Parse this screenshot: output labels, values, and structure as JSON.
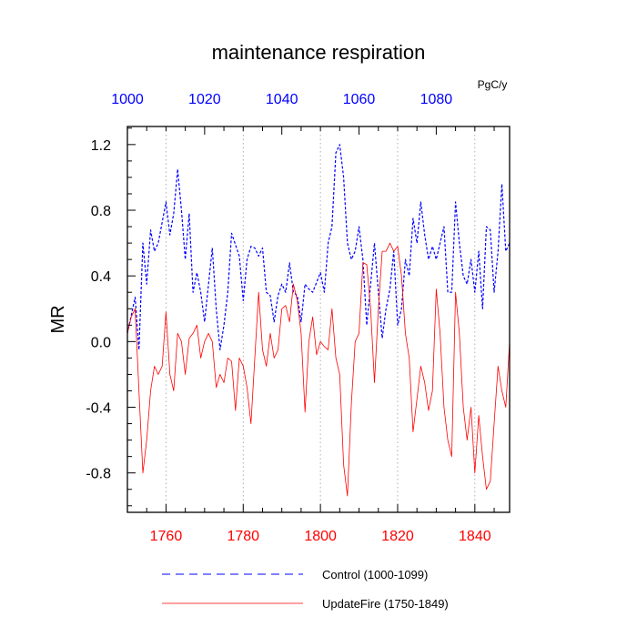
{
  "chart_data": {
    "type": "line",
    "title": "maintenance respiration",
    "ylabel": "MR",
    "units_label": "PgC/y",
    "ylim": [
      -1.04,
      1.31
    ],
    "yticks": [
      -0.8,
      -0.4,
      0.0,
      0.4,
      0.8,
      1.2
    ],
    "ytick_labels": [
      "-0.8",
      "-0.4",
      "0.0",
      "0.4",
      "0.8",
      "1.2"
    ],
    "grid": "vertical dotted lines at bottom-axis major ticks",
    "top_axis": {
      "range": [
        1000,
        1099
      ],
      "ticks": [
        1000,
        1020,
        1040,
        1060,
        1080
      ],
      "tick_labels": [
        "1000",
        "1020",
        "1040",
        "1060",
        "1080"
      ],
      "color": "#0000ff"
    },
    "bottom_axis": {
      "range": [
        1750,
        1849
      ],
      "ticks": [
        1760,
        1780,
        1800,
        1820,
        1840
      ],
      "tick_labels": [
        "1760",
        "1780",
        "1800",
        "1820",
        "1840"
      ],
      "color": "#ff0000"
    },
    "legend": {
      "placement": "bottom",
      "entries": [
        {
          "label": "Control (1000-1099)",
          "color": "#0000ff",
          "style": "dashed"
        },
        {
          "label": "UpdateFire (1750-1849)",
          "color": "#ff0000",
          "style": "solid"
        }
      ]
    },
    "series": [
      {
        "name": "Control (1000-1099)",
        "axis": "top",
        "color": "#0000ff",
        "x": [
          1000,
          1002,
          1003,
          1004,
          1005,
          1006,
          1007,
          1008,
          1010,
          1011,
          1012,
          1013,
          1014,
          1015,
          1016,
          1017,
          1018,
          1019,
          1020,
          1022,
          1023,
          1024,
          1025,
          1026,
          1027,
          1029,
          1030,
          1031,
          1032,
          1033,
          1034,
          1035,
          1036,
          1037,
          1038,
          1039,
          1040,
          1041,
          1042,
          1043,
          1044,
          1045,
          1046,
          1047,
          1048,
          1050,
          1051,
          1052,
          1053,
          1054,
          1055,
          1056,
          1057,
          1058,
          1059,
          1060,
          1061,
          1062,
          1063,
          1064,
          1065,
          1066,
          1067,
          1068,
          1069,
          1070,
          1071,
          1072,
          1073,
          1074,
          1075,
          1076,
          1077,
          1078,
          1079,
          1080,
          1081,
          1082,
          1083,
          1084,
          1085,
          1086,
          1087,
          1088,
          1089,
          1090,
          1091,
          1092,
          1093,
          1094,
          1095,
          1096,
          1097,
          1098,
          1099
        ],
        "y": [
          0.05,
          0.27,
          -0.05,
          0.6,
          0.35,
          0.68,
          0.55,
          0.6,
          0.85,
          0.65,
          0.78,
          1.05,
          0.8,
          0.5,
          0.78,
          0.3,
          0.42,
          0.3,
          0.12,
          0.57,
          0.2,
          -0.05,
          0.1,
          0.3,
          0.66,
          0.52,
          0.25,
          0.5,
          0.58,
          0.57,
          0.52,
          0.57,
          0.3,
          0.28,
          0.12,
          0.28,
          0.35,
          0.3,
          0.48,
          0.3,
          0.28,
          0.12,
          0.35,
          0.32,
          0.3,
          0.42,
          0.3,
          0.6,
          0.7,
          1.15,
          1.2,
          1.0,
          0.6,
          0.5,
          0.55,
          0.7,
          0.5,
          0.1,
          0.35,
          0.6,
          0.3,
          0.02,
          0.2,
          0.32,
          0.55,
          0.1,
          0.2,
          0.5,
          0.4,
          0.75,
          0.6,
          0.85,
          0.65,
          0.5,
          0.58,
          0.5,
          0.6,
          0.7,
          0.3,
          0.3,
          0.85,
          0.6,
          0.4,
          0.35,
          0.5,
          0.3,
          0.55,
          0.2,
          0.7,
          0.68,
          0.3,
          0.55,
          0.96,
          0.55,
          0.6
        ]
      },
      {
        "name": "UpdateFire (1750-1849)",
        "axis": "bottom",
        "color": "#ff0000",
        "x": [
          1750,
          1751,
          1752,
          1753,
          1754,
          1755,
          1756,
          1757,
          1758,
          1759,
          1760,
          1761,
          1762,
          1763,
          1764,
          1765,
          1766,
          1767,
          1768,
          1769,
          1770,
          1771,
          1772,
          1773,
          1774,
          1775,
          1776,
          1777,
          1778,
          1779,
          1780,
          1781,
          1782,
          1783,
          1784,
          1785,
          1786,
          1787,
          1788,
          1789,
          1790,
          1791,
          1792,
          1793,
          1794,
          1795,
          1796,
          1797,
          1798,
          1799,
          1800,
          1801,
          1802,
          1803,
          1804,
          1805,
          1806,
          1807,
          1808,
          1809,
          1810,
          1811,
          1812,
          1813,
          1814,
          1815,
          1816,
          1817,
          1818,
          1819,
          1820,
          1821,
          1822,
          1823,
          1824,
          1825,
          1826,
          1827,
          1828,
          1829,
          1830,
          1831,
          1832,
          1833,
          1834,
          1835,
          1836,
          1837,
          1838,
          1839,
          1840,
          1841,
          1842,
          1843,
          1844,
          1845,
          1846,
          1847,
          1848,
          1849
        ],
        "y": [
          0.05,
          0.15,
          0.2,
          -0.3,
          -0.8,
          -0.6,
          -0.3,
          -0.15,
          -0.2,
          -0.15,
          0.18,
          -0.2,
          -0.3,
          0.05,
          0.0,
          -0.2,
          0.02,
          0.05,
          0.1,
          -0.1,
          0.0,
          0.05,
          0.0,
          -0.28,
          -0.2,
          -0.25,
          -0.1,
          -0.12,
          -0.42,
          -0.1,
          -0.15,
          -0.28,
          -0.5,
          -0.1,
          0.3,
          -0.05,
          -0.15,
          0.05,
          -0.1,
          -0.05,
          0.2,
          0.22,
          0.12,
          0.35,
          0.25,
          0.05,
          -0.43,
          0.0,
          0.15,
          -0.08,
          0.0,
          -0.03,
          -0.05,
          0.2,
          -0.1,
          -0.2,
          -0.75,
          -0.94,
          -0.38,
          0.0,
          0.05,
          0.48,
          0.47,
          0.2,
          -0.25,
          0.2,
          0.55,
          0.55,
          0.6,
          0.55,
          0.58,
          0.4,
          0.05,
          -0.1,
          -0.55,
          -0.35,
          -0.15,
          -0.25,
          -0.42,
          -0.3,
          0.32,
          0.05,
          -0.4,
          -0.6,
          -0.7,
          0.3,
          0.05,
          -0.4,
          -0.6,
          -0.4,
          -0.8,
          -0.45,
          -0.7,
          -0.9,
          -0.85,
          -0.5,
          -0.15,
          -0.3,
          -0.4,
          0.0
        ]
      }
    ]
  }
}
